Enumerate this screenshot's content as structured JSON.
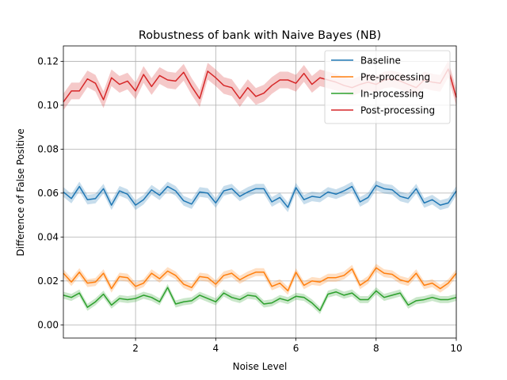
{
  "chart_data": {
    "type": "line",
    "title": "Robustness of bank with Naive Bayes (NB)",
    "xlabel": "Noise Level",
    "ylabel": "Difference of False Positive",
    "xlim": [
      0.2,
      10
    ],
    "ylim": [
      -0.006,
      0.127
    ],
    "x_ticks": [
      2,
      4,
      6,
      8,
      10
    ],
    "y_ticks": [
      0.0,
      0.02,
      0.04,
      0.06,
      0.08,
      0.1,
      0.12
    ],
    "x_tick_labels": [
      "2",
      "4",
      "6",
      "8",
      "10"
    ],
    "y_tick_labels": [
      "0.00",
      "0.02",
      "0.04",
      "0.06",
      "0.08",
      "0.10",
      "0.12"
    ],
    "grid": true,
    "legend_position": "top-right",
    "x": [
      0.2,
      0.4,
      0.6,
      0.8,
      1.0,
      1.2,
      1.4,
      1.6,
      1.8,
      2.0,
      2.2,
      2.4,
      2.6,
      2.8,
      3.0,
      3.2,
      3.4,
      3.6,
      3.8,
      4.0,
      4.2,
      4.4,
      4.6,
      4.8,
      5.0,
      5.2,
      5.4,
      5.6,
      5.8,
      6.0,
      6.2,
      6.4,
      6.6,
      6.8,
      7.0,
      7.2,
      7.4,
      7.6,
      7.8,
      8.0,
      8.2,
      8.4,
      8.6,
      8.8,
      9.0,
      9.2,
      9.4,
      9.6,
      9.8,
      10.0
    ],
    "series": [
      {
        "name": "Baseline",
        "color": "#1f77b4",
        "band": 0.0022,
        "values": [
          0.0605,
          0.0575,
          0.063,
          0.057,
          0.0575,
          0.062,
          0.0545,
          0.061,
          0.0595,
          0.0545,
          0.057,
          0.0615,
          0.059,
          0.063,
          0.061,
          0.0565,
          0.055,
          0.0605,
          0.06,
          0.0555,
          0.061,
          0.062,
          0.0585,
          0.0605,
          0.062,
          0.062,
          0.056,
          0.058,
          0.0535,
          0.0625,
          0.057,
          0.0585,
          0.058,
          0.0605,
          0.0595,
          0.061,
          0.063,
          0.056,
          0.058,
          0.0635,
          0.062,
          0.0615,
          0.0585,
          0.0575,
          0.062,
          0.0555,
          0.057,
          0.0545,
          0.0555,
          0.061
        ]
      },
      {
        "name": "Pre-processing",
        "color": "#ff7f0e",
        "band": 0.0018,
        "values": [
          0.0235,
          0.0195,
          0.024,
          0.019,
          0.0195,
          0.0235,
          0.0165,
          0.022,
          0.0215,
          0.0175,
          0.019,
          0.0235,
          0.021,
          0.0245,
          0.0225,
          0.0185,
          0.017,
          0.022,
          0.0215,
          0.0185,
          0.0225,
          0.0235,
          0.0205,
          0.0225,
          0.024,
          0.024,
          0.0175,
          0.019,
          0.0155,
          0.024,
          0.018,
          0.02,
          0.0195,
          0.0215,
          0.0215,
          0.0225,
          0.0255,
          0.018,
          0.0205,
          0.026,
          0.0235,
          0.023,
          0.0205,
          0.0195,
          0.0235,
          0.018,
          0.019,
          0.0165,
          0.019,
          0.0235
        ]
      },
      {
        "name": "In-processing",
        "color": "#2ca02c",
        "band": 0.0016,
        "values": [
          0.0135,
          0.0125,
          0.0145,
          0.008,
          0.0105,
          0.014,
          0.009,
          0.012,
          0.0115,
          0.012,
          0.0135,
          0.0125,
          0.0105,
          0.017,
          0.0095,
          0.0105,
          0.011,
          0.0135,
          0.012,
          0.0105,
          0.0145,
          0.0125,
          0.0115,
          0.0135,
          0.013,
          0.0095,
          0.01,
          0.012,
          0.011,
          0.013,
          0.0125,
          0.01,
          0.0065,
          0.014,
          0.015,
          0.0135,
          0.0145,
          0.0115,
          0.0115,
          0.0155,
          0.0125,
          0.0135,
          0.0145,
          0.009,
          0.011,
          0.0115,
          0.0125,
          0.0115,
          0.0115,
          0.0125
        ]
      },
      {
        "name": "Post-processing",
        "color": "#d62728",
        "band": 0.0038,
        "values": [
          0.1015,
          0.1065,
          0.1065,
          0.112,
          0.11,
          0.1025,
          0.1125,
          0.1095,
          0.111,
          0.1065,
          0.114,
          0.1085,
          0.1135,
          0.1115,
          0.111,
          0.115,
          0.1085,
          0.103,
          0.1155,
          0.1125,
          0.109,
          0.108,
          0.103,
          0.108,
          0.104,
          0.1055,
          0.109,
          0.1115,
          0.1115,
          0.11,
          0.1145,
          0.1095,
          0.1125,
          0.1115,
          0.1105,
          0.109,
          0.108,
          0.1095,
          0.1105,
          0.1095,
          0.1115,
          0.112,
          0.111,
          0.1095,
          0.108,
          0.1115,
          0.1105,
          0.11,
          0.1165,
          0.1035
        ]
      }
    ]
  }
}
